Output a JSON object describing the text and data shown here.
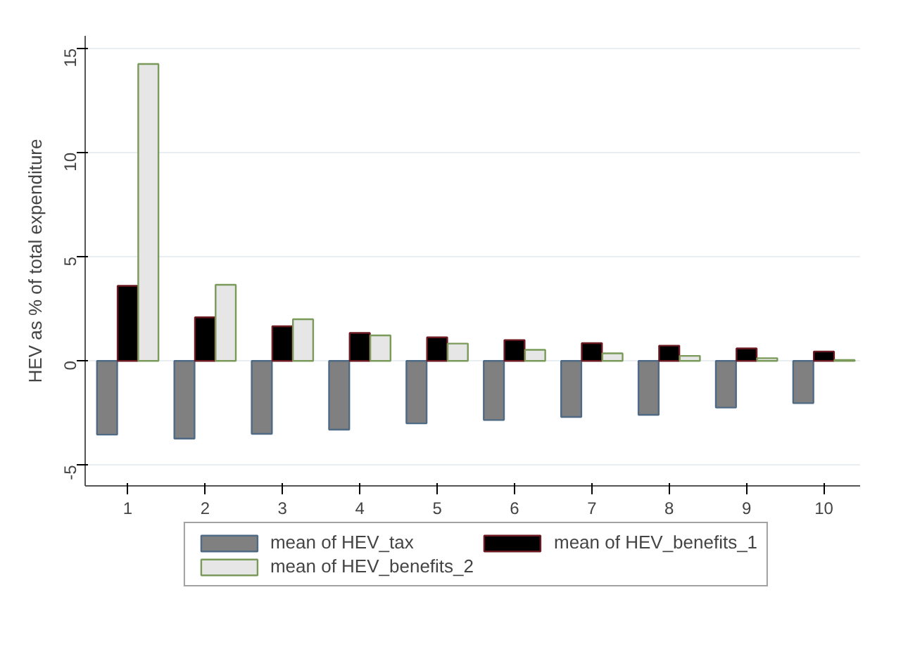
{
  "chart_data": {
    "type": "bar",
    "ylabel": "HEV as % of total expenditure",
    "categories": [
      "1",
      "2",
      "3",
      "4",
      "5",
      "6",
      "7",
      "8",
      "9",
      "10"
    ],
    "series": [
      {
        "name": "mean of HEV_tax",
        "color": "#808080",
        "values": [
          -3.54,
          -3.73,
          -3.5,
          -3.3,
          -3.0,
          -2.84,
          -2.69,
          -2.59,
          -2.24,
          -2.03
        ]
      },
      {
        "name": "mean of HEV_benefits_1",
        "color": "#000000",
        "values": [
          3.6,
          2.09,
          1.66,
          1.34,
          1.13,
          1.0,
          0.85,
          0.73,
          0.6,
          0.45
        ]
      },
      {
        "name": "mean of HEV_benefits_2",
        "color": "#e6e6e6",
        "values": [
          14.25,
          3.65,
          2.0,
          1.22,
          0.83,
          0.53,
          0.36,
          0.24,
          0.13,
          0.04
        ]
      }
    ],
    "ylim": [
      -6,
      15.6
    ],
    "yticks": [
      -5,
      0,
      5,
      10,
      15
    ],
    "grid": "y",
    "legend": "bottom"
  }
}
